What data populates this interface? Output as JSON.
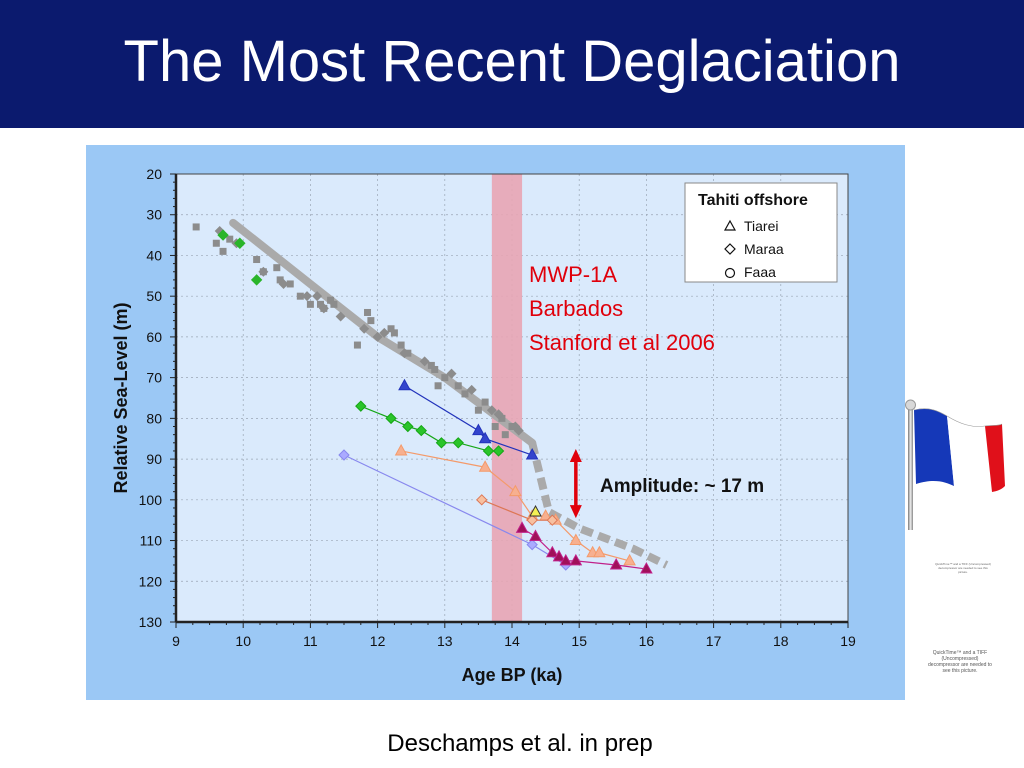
{
  "slide": {
    "title": "The Most Recent Deglaciation",
    "caption": "Deschamps et al. in prep",
    "title_bar_color": "#0b1a6e"
  },
  "side": {
    "flag_icon": "french-flag-icon",
    "qt_note_1": "QuickTime™ and a TIFF (Uncompressed) decompressor are needed to see this picture.",
    "qt_note_2": "QuickTime™ and a TIFF (Uncompressed) decompressor are needed to see this picture."
  },
  "chart_data": {
    "type": "scatter",
    "xlabel": "Age BP (ka)",
    "ylabel": "Relative Sea-Level (m)",
    "xlim": [
      9,
      19
    ],
    "ylim": [
      20,
      130
    ],
    "y_inverted": true,
    "xticks": [
      9,
      10,
      11,
      12,
      13,
      14,
      15,
      16,
      17,
      18,
      19
    ],
    "yticks": [
      20,
      30,
      40,
      50,
      60,
      70,
      80,
      90,
      100,
      110,
      120,
      130
    ],
    "grid": true,
    "legend": {
      "title": "Tahiti offshore",
      "position": "top-right",
      "entries": [
        {
          "label": "Tiarei",
          "marker": "triangle"
        },
        {
          "label": "Maraa",
          "marker": "diamond"
        },
        {
          "label": "Faaa",
          "marker": "circle"
        }
      ]
    },
    "mwp_band": {
      "x": [
        13.7,
        14.15
      ],
      "color": "#e8a5b4"
    },
    "annotation_mwp": [
      "MWP-1A",
      "Barbados",
      "Stanford et al 2006"
    ],
    "annotation_mwp_color": "#e0000b",
    "amplitude": {
      "label": "Amplitude: ~ 17 m",
      "x": 14.95,
      "y_range": [
        88,
        104
      ],
      "arrow_color": "#e0000b"
    },
    "barbados_curve": {
      "color": "#aaaaaa",
      "dash_from_index": 4,
      "points": [
        [
          9.85,
          32
        ],
        [
          11,
          47
        ],
        [
          12,
          60
        ],
        [
          13,
          70
        ],
        [
          14.3,
          86
        ],
        [
          14.55,
          103
        ],
        [
          15,
          107
        ],
        [
          15.8,
          112
        ],
        [
          16.3,
          116
        ]
      ]
    },
    "barbados_squares": {
      "color": "#8c8c8c",
      "points": [
        [
          9.3,
          33
        ],
        [
          9.6,
          37
        ],
        [
          9.7,
          39
        ],
        [
          9.8,
          36
        ],
        [
          10.2,
          41
        ],
        [
          10.3,
          44
        ],
        [
          10.5,
          43
        ],
        [
          10.55,
          46
        ],
        [
          10.7,
          47
        ],
        [
          10.85,
          50
        ],
        [
          11.0,
          52
        ],
        [
          11.15,
          52
        ],
        [
          11.2,
          53
        ],
        [
          11.3,
          51
        ],
        [
          11.35,
          52
        ],
        [
          11.85,
          54
        ],
        [
          11.9,
          56
        ],
        [
          11.7,
          62
        ],
        [
          12.2,
          58
        ],
        [
          12.25,
          59
        ],
        [
          12.35,
          62
        ],
        [
          12.45,
          64
        ],
        [
          12.8,
          67
        ],
        [
          12.85,
          68
        ],
        [
          12.9,
          72
        ],
        [
          13.0,
          70
        ],
        [
          13.2,
          72
        ],
        [
          13.3,
          74
        ],
        [
          13.5,
          78
        ],
        [
          13.6,
          76
        ],
        [
          13.75,
          82
        ],
        [
          13.85,
          80
        ],
        [
          13.9,
          84
        ],
        [
          14.0,
          82
        ]
      ]
    },
    "barbados_diamonds": {
      "color": "#8c8c8c",
      "points": [
        [
          9.65,
          34
        ],
        [
          9.9,
          37
        ],
        [
          10.3,
          44
        ],
        [
          10.6,
          47
        ],
        [
          10.95,
          50
        ],
        [
          11.1,
          50
        ],
        [
          11.2,
          53
        ],
        [
          11.45,
          55
        ],
        [
          11.8,
          58
        ],
        [
          12.0,
          60
        ],
        [
          12.1,
          59
        ],
        [
          12.4,
          64
        ],
        [
          12.7,
          66
        ],
        [
          13.1,
          69
        ],
        [
          13.4,
          73
        ],
        [
          13.7,
          78
        ],
        [
          13.8,
          79
        ],
        [
          14.05,
          82
        ],
        [
          14.1,
          83
        ]
      ]
    },
    "series": [
      {
        "marker": "diamond",
        "color": "#2ab52a",
        "fill": "#2ab52a",
        "connected": false,
        "points": [
          [
            9.7,
            35
          ],
          [
            9.95,
            37
          ],
          [
            10.2,
            46
          ]
        ]
      },
      {
        "marker": "diamond",
        "color": "#15a615",
        "fill": "#2ac42a",
        "connected": true,
        "points": [
          [
            11.75,
            77
          ],
          [
            12.2,
            80
          ],
          [
            12.45,
            82
          ],
          [
            12.65,
            83
          ],
          [
            12.95,
            86
          ],
          [
            13.2,
            86
          ],
          [
            13.65,
            88
          ],
          [
            13.8,
            88
          ]
        ]
      },
      {
        "marker": "triangle",
        "color": "#2233bb",
        "fill": "#3344cc",
        "connected": true,
        "points": [
          [
            12.4,
            72
          ],
          [
            13.5,
            83
          ],
          [
            13.6,
            85
          ],
          [
            14.3,
            89
          ]
        ]
      },
      {
        "marker": "triangle",
        "color": "#f49a6a",
        "fill": "#f7b090",
        "connected": true,
        "points": [
          [
            12.35,
            88
          ],
          [
            13.6,
            92
          ],
          [
            14.05,
            98
          ],
          [
            14.3,
            104
          ],
          [
            14.5,
            104
          ],
          [
            14.65,
            105
          ],
          [
            14.95,
            110
          ],
          [
            15.2,
            113
          ],
          [
            15.3,
            113
          ],
          [
            15.75,
            115
          ]
        ]
      },
      {
        "marker": "diamond",
        "color": "#8888ee",
        "fill": "#aaaaff",
        "connected": true,
        "points": [
          [
            11.5,
            89
          ],
          [
            14.3,
            111
          ],
          [
            14.8,
            116
          ]
        ]
      },
      {
        "marker": "diamond",
        "color": "#dd7755",
        "fill": "#f7c0a0",
        "connected": true,
        "points": [
          [
            13.55,
            100
          ],
          [
            14.3,
            105
          ],
          [
            14.6,
            105
          ]
        ]
      },
      {
        "marker": "triangle",
        "color": "#c0208a",
        "fill": "#a0105a",
        "connected": true,
        "points": [
          [
            14.15,
            107
          ],
          [
            14.35,
            109
          ],
          [
            14.6,
            113
          ],
          [
            14.7,
            114
          ],
          [
            14.8,
            115
          ],
          [
            14.95,
            115
          ],
          [
            15.55,
            116
          ],
          [
            16.0,
            117
          ]
        ]
      },
      {
        "marker": "triangle",
        "color": "#333333",
        "fill": "#f5f055",
        "connected": false,
        "points": [
          [
            14.35,
            103
          ]
        ]
      }
    ]
  }
}
